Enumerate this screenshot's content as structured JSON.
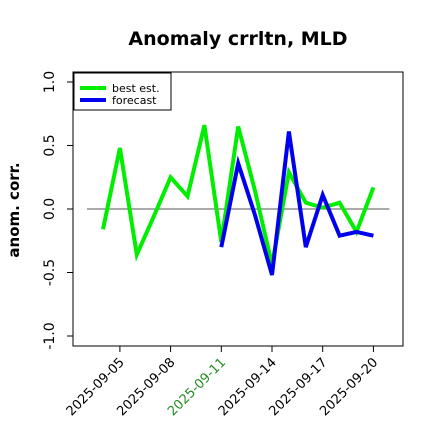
{
  "chart_data": {
    "type": "line",
    "title": "Anomaly crrltn, MLD",
    "ylabel": "anom. corr.",
    "xlabel": "",
    "ylim": [
      -1.0,
      1.0
    ],
    "yticks": [
      -1.0,
      -0.5,
      0.0,
      0.5,
      1.0
    ],
    "ytick_labels": [
      "-1.0",
      "-0.5",
      "0.0",
      "0.5",
      "1.0"
    ],
    "x": [
      "2025-09-04",
      "2025-09-05",
      "2025-09-06",
      "2025-09-07",
      "2025-09-08",
      "2025-09-09",
      "2025-09-10",
      "2025-09-11",
      "2025-09-12",
      "2025-09-13",
      "2025-09-14",
      "2025-09-15",
      "2025-09-16",
      "2025-09-17",
      "2025-09-18",
      "2025-09-19",
      "2025-09-20"
    ],
    "xtick_labels": [
      {
        "label": "2025-09-05",
        "color": "#000000"
      },
      {
        "label": "2025-09-08",
        "color": "#000000"
      },
      {
        "label": "2025-09-11",
        "color": "#228B22"
      },
      {
        "label": "2025-09-14",
        "color": "#000000"
      },
      {
        "label": "2025-09-17",
        "color": "#000000"
      },
      {
        "label": "2025-09-20",
        "color": "#000000"
      }
    ],
    "reference_line": 0.0,
    "grid": false,
    "legend_position": "top-left",
    "series": [
      {
        "name": "best est.",
        "color": "#00ee00",
        "values": [
          -0.16,
          0.48,
          -0.36,
          -0.06,
          0.25,
          0.1,
          0.66,
          -0.26,
          0.65,
          0.14,
          -0.44,
          0.29,
          0.05,
          0.01,
          0.05,
          -0.18,
          0.17
        ]
      },
      {
        "name": "forecast",
        "color": "#0000ee",
        "values": [
          null,
          null,
          null,
          null,
          null,
          null,
          null,
          -0.3,
          0.36,
          -0.05,
          -0.52,
          0.61,
          -0.3,
          0.11,
          -0.21,
          -0.18,
          -0.21
        ]
      }
    ]
  }
}
